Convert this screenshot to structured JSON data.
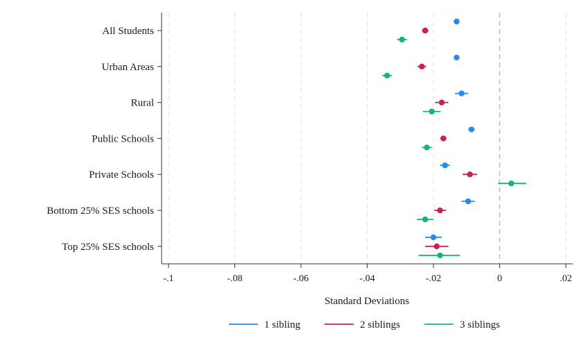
{
  "chart_data": {
    "type": "scatter",
    "xlabel": "Standard Deviations",
    "xlim": [
      -0.1,
      0.02
    ],
    "xticks": [
      -0.1,
      -0.08,
      -0.06,
      -0.04,
      -0.02,
      0,
      0.02
    ],
    "xtick_labels": [
      "-.1",
      "-.08",
      "-.06",
      "-.04",
      "-.02",
      "0",
      ".02"
    ],
    "categories": [
      "All Students",
      "Urban Areas",
      "Rural",
      "Public Schools",
      "Private Schools",
      "Bottom 25% SES schools",
      "Top 25% SES schools"
    ],
    "grid": "vertical dashed",
    "reference_line": 0,
    "legend_position": "bottom",
    "series": [
      {
        "name": "1 sibling",
        "color": "#2b8ae6",
        "values": [
          -0.013,
          -0.013,
          -0.0115,
          -0.0085,
          -0.0165,
          -0.0095,
          -0.02
        ],
        "ci_low": [
          -0.0138,
          -0.0138,
          -0.0135,
          -0.0095,
          -0.018,
          -0.0115,
          -0.0225
        ],
        "ci_high": [
          -0.0122,
          -0.0122,
          -0.0095,
          -0.0075,
          -0.015,
          -0.0075,
          -0.0175
        ]
      },
      {
        "name": "2 siblings",
        "color": "#c8205b",
        "values": [
          -0.0225,
          -0.0235,
          -0.0175,
          -0.017,
          -0.009,
          -0.018,
          -0.019
        ],
        "ci_low": [
          -0.0235,
          -0.0248,
          -0.0195,
          -0.018,
          -0.0112,
          -0.0198,
          -0.0225
        ],
        "ci_high": [
          -0.0215,
          -0.0222,
          -0.0155,
          -0.016,
          -0.0068,
          -0.0162,
          -0.0155
        ]
      },
      {
        "name": "3 siblings",
        "color": "#19b27f",
        "values": [
          -0.0295,
          -0.034,
          -0.0205,
          -0.022,
          0.0035,
          -0.0225,
          -0.018
        ],
        "ci_low": [
          -0.031,
          -0.0355,
          -0.0232,
          -0.0235,
          -0.0005,
          -0.025,
          -0.0245
        ],
        "ci_high": [
          -0.028,
          -0.0325,
          -0.0178,
          -0.0205,
          0.008,
          -0.02,
          -0.012
        ]
      }
    ]
  }
}
